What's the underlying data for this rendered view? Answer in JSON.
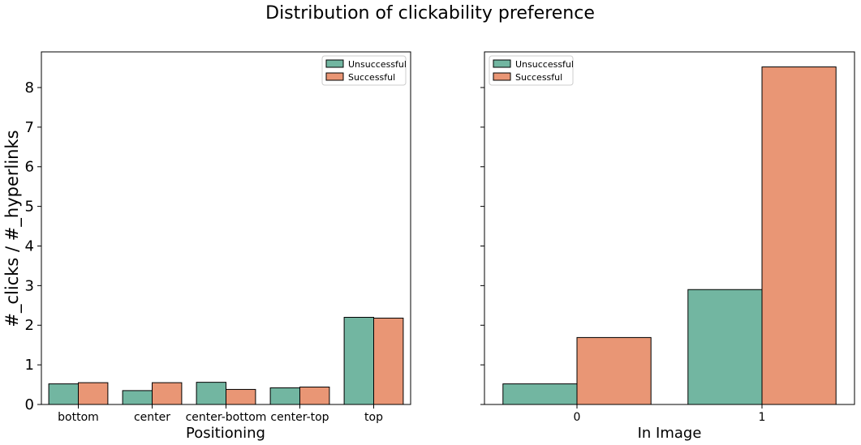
{
  "suptitle": "Distribution of clickability preference",
  "colors": {
    "unsuccessful": "#72b6a1",
    "successful": "#e99675"
  },
  "chart_data": [
    {
      "type": "bar",
      "xlabel": "Positioning",
      "ylabel": "#_clicks / #_hyperlinks",
      "ylim": [
        0,
        8.9
      ],
      "yticks": [
        "0",
        "1",
        "2",
        "3",
        "4",
        "5",
        "6",
        "7",
        "8"
      ],
      "categories": [
        "bottom",
        "center",
        "center-bottom",
        "center-top",
        "top"
      ],
      "series": [
        {
          "name": "Unsuccessful",
          "values": [
            0.52,
            0.35,
            0.56,
            0.42,
            2.2
          ]
        },
        {
          "name": "Successful",
          "values": [
            0.55,
            0.55,
            0.38,
            0.44,
            2.18
          ]
        }
      ],
      "legend": {
        "position": "upper right",
        "entries": [
          "Unsuccessful",
          "Successful"
        ]
      }
    },
    {
      "type": "bar",
      "xlabel": "In Image",
      "ylabel": "",
      "ylim": [
        0,
        8.9
      ],
      "categories": [
        "0",
        "1"
      ],
      "series": [
        {
          "name": "Unsuccessful",
          "values": [
            0.52,
            2.9
          ]
        },
        {
          "name": "Successful",
          "values": [
            1.69,
            8.52
          ]
        }
      ],
      "legend": {
        "position": "upper left",
        "entries": [
          "Unsuccessful",
          "Successful"
        ]
      }
    }
  ]
}
